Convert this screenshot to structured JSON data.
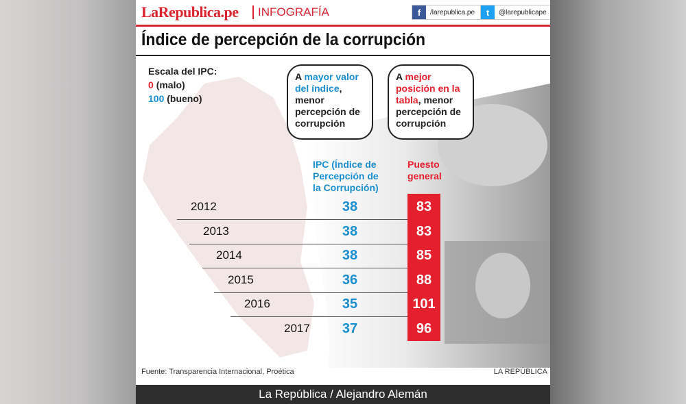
{
  "header": {
    "brand": "LaRepublica.pe",
    "section": "INFOGRAFÍA",
    "facebook": "/larepublica.pe",
    "twitter": "@larepublicape"
  },
  "title": "Índice de percepción de la corrupción",
  "legend": {
    "label": "Escala del IPC:",
    "low_value": "0",
    "low_text": "(malo)",
    "high_value": "100",
    "high_text": "(bueno)"
  },
  "note_ipc": {
    "prefix": "A ",
    "highlight": "mayor valor del índice",
    "suffix": ", menor percepción de corrupción"
  },
  "note_rank": {
    "prefix": "A ",
    "highlight": "mejor posición en la tabla",
    "suffix": ", menor percepción de corrupción"
  },
  "table": {
    "columns": [
      "IPC (Índice de Percepción de la Corrupción)",
      "Puesto general"
    ],
    "rows": [
      [
        "2012",
        "38",
        "83"
      ],
      [
        "2013",
        "38",
        "83"
      ],
      [
        "2014",
        "38",
        "85"
      ],
      [
        "2015",
        "36",
        "88"
      ],
      [
        "2016",
        "35",
        "101"
      ],
      [
        "2017",
        "37",
        "96"
      ]
    ]
  },
  "source": "Fuente: Transparencia Internacional, Proética",
  "signature": "LA REPÚBLICA",
  "caption": "La República / Alejandro Alemán"
}
